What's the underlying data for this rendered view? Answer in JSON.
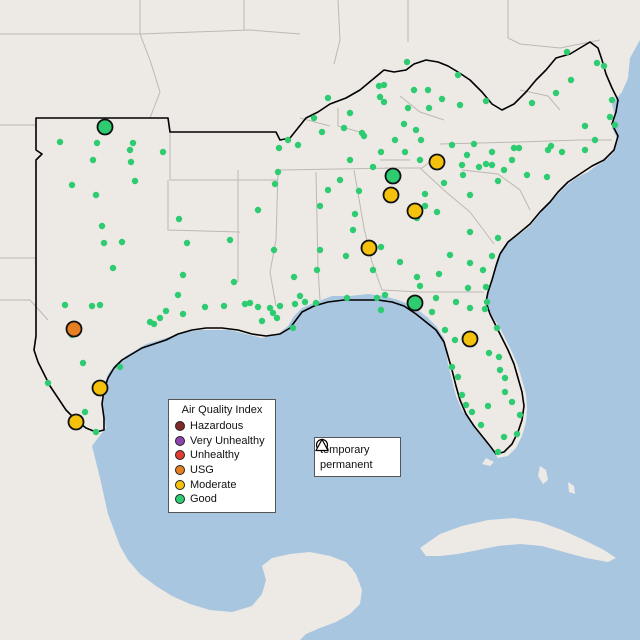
{
  "colors": {
    "ocean": "#a9c6e0",
    "land": "#ede9e5",
    "state_border": "#bdb8b4",
    "outline": "#000000",
    "hazardous": "#7e2a2a",
    "very_unhealthy": "#8e44ad",
    "unhealthy": "#e03c31",
    "usg": "#e67e22",
    "moderate": "#f4c20d",
    "good": "#2ecc71"
  },
  "aqi_legend": {
    "title": "Air Quality Index",
    "items": [
      {
        "label": "Hazardous",
        "color": "#7e2a2a",
        "icon": "hazardous-dot-icon"
      },
      {
        "label": "Very Unhealthy",
        "color": "#8e44ad",
        "icon": "very-unhealthy-dot-icon"
      },
      {
        "label": "Unhealthy",
        "color": "#e03c31",
        "icon": "unhealthy-dot-icon"
      },
      {
        "label": "USG",
        "color": "#e67e22",
        "icon": "usg-dot-icon"
      },
      {
        "label": "Moderate",
        "color": "#f4c20d",
        "icon": "moderate-dot-icon"
      },
      {
        "label": "Good",
        "color": "#2ecc71",
        "icon": "good-dot-icon"
      }
    ]
  },
  "type_legend": {
    "items": [
      {
        "label": "temporary",
        "icon": "circle-icon"
      },
      {
        "label": "permanent",
        "icon": "triangle-icon"
      }
    ]
  },
  "monitors": {
    "small_category": "Good",
    "large": [
      {
        "category": "Good"
      },
      {
        "category": "USG"
      },
      {
        "category": "Moderate"
      },
      {
        "category": "Moderate"
      },
      {
        "category": "Good"
      },
      {
        "category": "Moderate"
      },
      {
        "category": "Moderate"
      },
      {
        "category": "Moderate"
      },
      {
        "category": "Moderate"
      },
      {
        "category": "Good"
      },
      {
        "category": "Moderate"
      }
    ]
  }
}
